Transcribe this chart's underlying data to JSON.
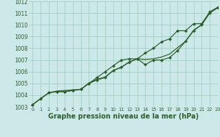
{
  "bg_color": "#cce8e8",
  "grid_color": "#99ccb8",
  "line_color": "#2d5e2d",
  "tick_color": "#2d5e2d",
  "xlabel": "Graphe pression niveau de la mer (hPa)",
  "xlim": [
    -0.5,
    23
  ],
  "ylim": [
    1003,
    1012
  ],
  "xticks": [
    0,
    1,
    2,
    3,
    4,
    5,
    6,
    7,
    8,
    9,
    10,
    11,
    12,
    13,
    14,
    15,
    16,
    17,
    18,
    19,
    20,
    21,
    22,
    23
  ],
  "yticks": [
    1003,
    1004,
    1005,
    1006,
    1007,
    1008,
    1009,
    1010,
    1011,
    1012
  ],
  "s1_y": [
    1003.2,
    1003.7,
    1004.2,
    1004.3,
    1004.3,
    1004.4,
    1004.5,
    1005.0,
    1005.3,
    1005.5,
    1006.1,
    1006.4,
    1006.8,
    1007.1,
    1006.6,
    1007.0,
    1007.0,
    1007.2,
    1007.8,
    1008.6,
    1009.5,
    1010.0,
    1011.0,
    1011.45
  ],
  "s2_y": [
    1003.2,
    1003.7,
    1004.2,
    1004.35,
    1004.4,
    1004.45,
    1004.5,
    1005.05,
    1005.35,
    1005.55,
    1006.1,
    1006.35,
    1006.85,
    1007.1,
    1007.05,
    1007.1,
    1007.25,
    1007.5,
    1008.05,
    1008.6,
    1009.55,
    1010.0,
    1011.05,
    1011.5
  ],
  "s3_y": [
    1003.2,
    1003.7,
    1004.2,
    1004.3,
    1004.3,
    1004.4,
    1004.5,
    1005.0,
    1005.5,
    1006.0,
    1006.5,
    1007.0,
    1007.1,
    1007.1,
    1007.6,
    1008.0,
    1008.55,
    1008.8,
    1009.5,
    1009.5,
    1010.1,
    1010.1,
    1011.1,
    1011.5
  ],
  "lw": 0.9,
  "ms": 2.2
}
